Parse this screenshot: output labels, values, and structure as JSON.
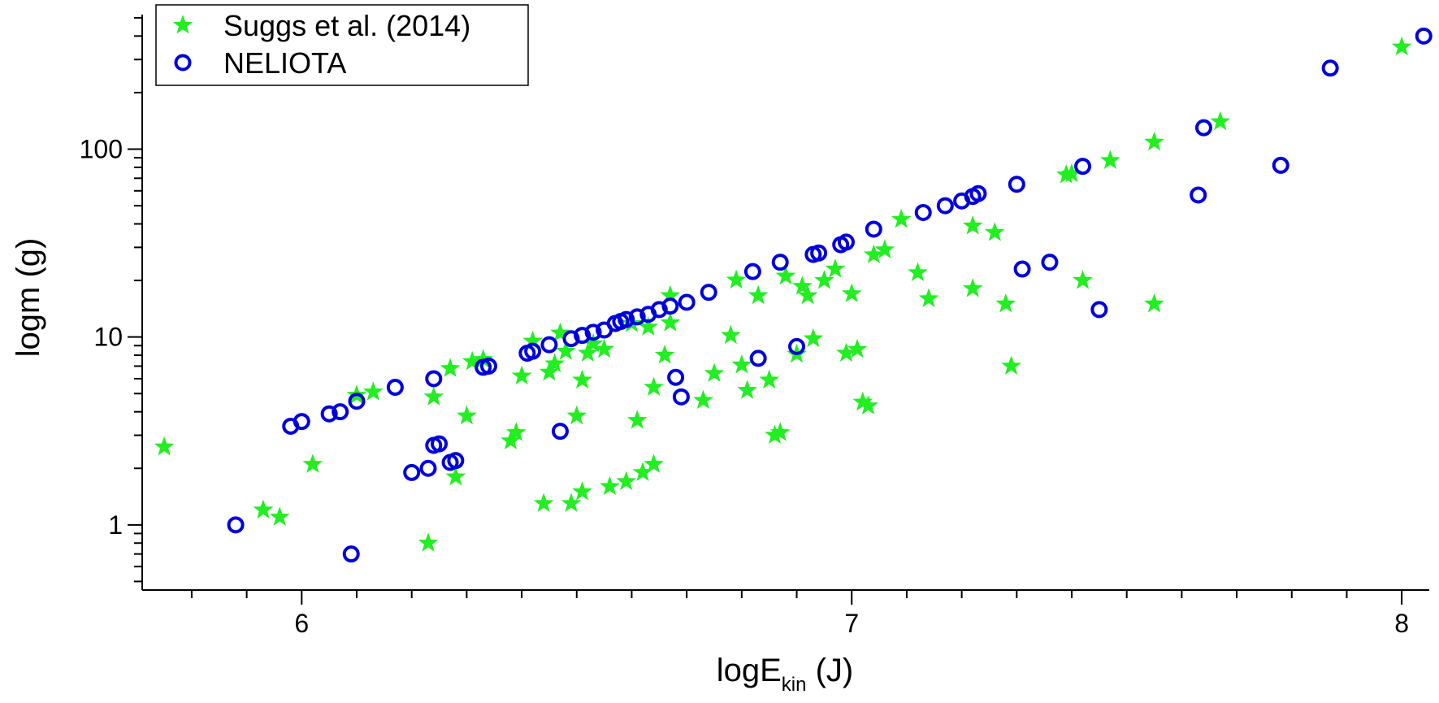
{
  "chart_data": {
    "type": "scatter",
    "title": "",
    "xlabel": "logE",
    "xlabel_subscript": "kin",
    "xlabel_unit": " (J)",
    "ylabel": "logm (g)",
    "xlim": [
      5.71,
      8.05
    ],
    "ylim": [
      0.45,
      520
    ],
    "yscale": "log",
    "x_ticks": [
      "6",
      "7",
      "8"
    ],
    "y_ticks": [
      "1",
      "10",
      "100"
    ],
    "legend_position": "top-left",
    "series": [
      {
        "name": "Suggs et al. (2014)",
        "marker": "star",
        "color": "#22ee22",
        "points": [
          [
            5.75,
            2.6
          ],
          [
            5.93,
            1.2
          ],
          [
            5.96,
            1.1
          ],
          [
            6.02,
            2.1
          ],
          [
            6.1,
            4.9
          ],
          [
            6.13,
            5.1
          ],
          [
            6.23,
            0.8
          ],
          [
            6.24,
            4.8
          ],
          [
            6.27,
            6.8
          ],
          [
            6.28,
            1.8
          ],
          [
            6.3,
            3.8
          ],
          [
            6.31,
            7.4
          ],
          [
            6.33,
            7.6
          ],
          [
            6.38,
            2.8
          ],
          [
            6.39,
            3.1
          ],
          [
            6.4,
            6.2
          ],
          [
            6.42,
            9.5
          ],
          [
            6.44,
            1.3
          ],
          [
            6.45,
            6.5
          ],
          [
            6.46,
            7.2
          ],
          [
            6.47,
            10.5
          ],
          [
            6.48,
            8.4
          ],
          [
            6.49,
            1.3
          ],
          [
            6.5,
            3.8
          ],
          [
            6.51,
            5.9
          ],
          [
            6.51,
            1.5
          ],
          [
            6.52,
            8.2
          ],
          [
            6.53,
            9.2
          ],
          [
            6.55,
            8.6
          ],
          [
            6.56,
            1.6
          ],
          [
            6.59,
            1.7
          ],
          [
            6.6,
            11.8
          ],
          [
            6.61,
            3.6
          ],
          [
            6.62,
            1.9
          ],
          [
            6.63,
            11.3
          ],
          [
            6.64,
            2.1
          ],
          [
            6.64,
            5.4
          ],
          [
            6.66,
            8.0
          ],
          [
            6.67,
            11.9
          ],
          [
            6.67,
            16.6
          ],
          [
            6.73,
            4.6
          ],
          [
            6.75,
            6.4
          ],
          [
            6.78,
            10.2
          ],
          [
            6.79,
            20.1
          ],
          [
            6.8,
            7.1
          ],
          [
            6.81,
            5.2
          ],
          [
            6.83,
            16.6
          ],
          [
            6.85,
            5.9
          ],
          [
            6.86,
            3.0
          ],
          [
            6.87,
            3.1
          ],
          [
            6.88,
            21.1
          ],
          [
            6.9,
            8.1
          ],
          [
            6.91,
            18.6
          ],
          [
            6.92,
            16.6
          ],
          [
            6.93,
            9.8
          ],
          [
            6.95,
            20.0
          ],
          [
            6.97,
            23.0
          ],
          [
            6.99,
            8.2
          ],
          [
            7.0,
            17.0
          ],
          [
            7.01,
            8.6
          ],
          [
            7.02,
            4.5
          ],
          [
            7.03,
            4.3
          ],
          [
            7.04,
            27.4
          ],
          [
            7.06,
            29.1
          ],
          [
            7.09,
            42.3
          ],
          [
            7.12,
            22.0
          ],
          [
            7.14,
            16.0
          ],
          [
            7.22,
            18.1
          ],
          [
            7.22,
            39.0
          ],
          [
            7.26,
            36.0
          ],
          [
            7.28,
            15.0
          ],
          [
            7.29,
            7.0
          ],
          [
            7.39,
            73.0
          ],
          [
            7.4,
            74.0
          ],
          [
            7.42,
            20.0
          ],
          [
            7.47,
            87.0
          ],
          [
            7.55,
            109.0
          ],
          [
            7.55,
            15.0
          ],
          [
            7.67,
            140.0
          ],
          [
            8.0,
            350.0
          ]
        ]
      },
      {
        "name": "NELIOTA",
        "marker": "circle",
        "color": "#0000dd",
        "points": [
          [
            5.88,
            1.0
          ],
          [
            5.98,
            3.35
          ],
          [
            6.0,
            3.55
          ],
          [
            6.05,
            3.9
          ],
          [
            6.07,
            4.0
          ],
          [
            6.09,
            0.7
          ],
          [
            6.1,
            4.55
          ],
          [
            6.17,
            5.4
          ],
          [
            6.2,
            1.9
          ],
          [
            6.23,
            2.0
          ],
          [
            6.24,
            2.65
          ],
          [
            6.24,
            6.0
          ],
          [
            6.25,
            2.7
          ],
          [
            6.27,
            2.15
          ],
          [
            6.28,
            2.2
          ],
          [
            6.33,
            6.9
          ],
          [
            6.34,
            7.0
          ],
          [
            6.41,
            8.2
          ],
          [
            6.42,
            8.4
          ],
          [
            6.45,
            9.1
          ],
          [
            6.47,
            3.15
          ],
          [
            6.49,
            9.8
          ],
          [
            6.51,
            10.2
          ],
          [
            6.53,
            10.6
          ],
          [
            6.55,
            10.9
          ],
          [
            6.57,
            11.8
          ],
          [
            6.58,
            12.1
          ],
          [
            6.59,
            12.4
          ],
          [
            6.61,
            12.8
          ],
          [
            6.63,
            13.2
          ],
          [
            6.65,
            14.0
          ],
          [
            6.67,
            14.6
          ],
          [
            6.68,
            6.1
          ],
          [
            6.69,
            4.8
          ],
          [
            6.7,
            15.3
          ],
          [
            6.74,
            17.3
          ],
          [
            6.82,
            22.3
          ],
          [
            6.83,
            7.7
          ],
          [
            6.87,
            25.0
          ],
          [
            6.9,
            8.9
          ],
          [
            6.93,
            27.5
          ],
          [
            6.94,
            28.0
          ],
          [
            6.98,
            31.0
          ],
          [
            6.99,
            32.0
          ],
          [
            7.04,
            37.5
          ],
          [
            7.13,
            46.0
          ],
          [
            7.17,
            50.0
          ],
          [
            7.2,
            53.0
          ],
          [
            7.22,
            56.0
          ],
          [
            7.23,
            58.0
          ],
          [
            7.3,
            65.0
          ],
          [
            7.31,
            23.0
          ],
          [
            7.36,
            25.0
          ],
          [
            7.42,
            81.0
          ],
          [
            7.45,
            14.0
          ],
          [
            7.63,
            57.0
          ],
          [
            7.64,
            130.0
          ],
          [
            7.78,
            82.0
          ],
          [
            7.87,
            270.0
          ],
          [
            8.04,
            400.0
          ]
        ]
      }
    ]
  }
}
